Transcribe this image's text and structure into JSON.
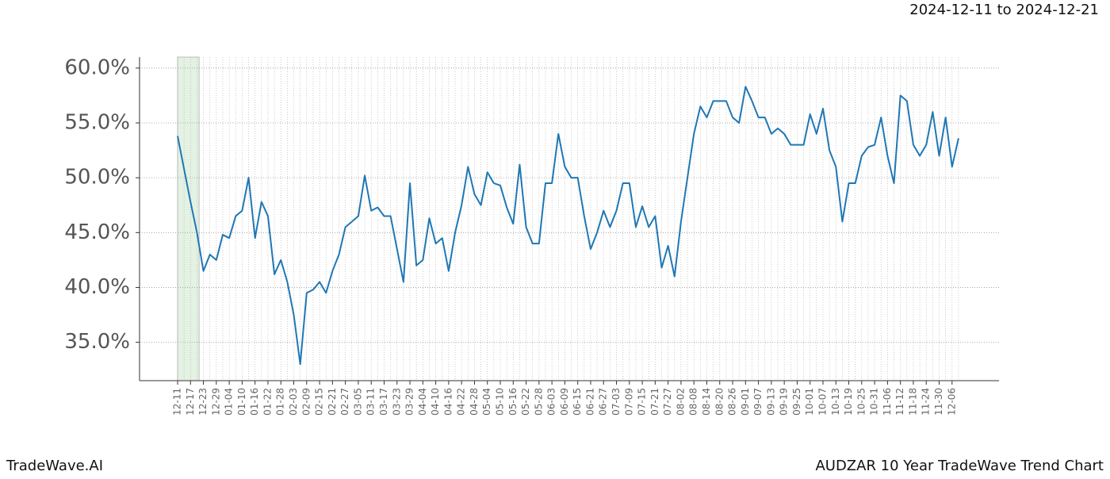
{
  "chart_data": {
    "type": "line",
    "date_range": "2024-12-11 to 2024-12-21",
    "brand": "TradeWave.AI",
    "title": "AUDZAR 10 Year TradeWave Trend Chart",
    "categories": [
      "12-11",
      null,
      "12-17",
      null,
      "12-23",
      null,
      "12-29",
      null,
      "01-04",
      null,
      "01-10",
      null,
      "01-16",
      null,
      "01-22",
      null,
      "01-28",
      null,
      "02-03",
      null,
      "02-09",
      null,
      "02-15",
      null,
      "02-21",
      null,
      "02-27",
      null,
      "03-05",
      null,
      "03-11",
      null,
      "03-17",
      null,
      "03-23",
      null,
      "03-29",
      null,
      "04-04",
      null,
      "04-10",
      null,
      "04-16",
      null,
      "04-22",
      null,
      "04-28",
      null,
      "05-04",
      null,
      "05-10",
      null,
      "05-16",
      null,
      "05-22",
      null,
      "05-28",
      null,
      "06-03",
      null,
      "06-09",
      null,
      "06-15",
      null,
      "06-21",
      null,
      "06-27",
      null,
      "07-03",
      null,
      "07-09",
      null,
      "07-15",
      null,
      "07-21",
      null,
      "07-27",
      null,
      "08-02",
      null,
      "08-08",
      null,
      "08-14",
      null,
      "08-20",
      null,
      "08-26",
      null,
      "09-01",
      null,
      "09-07",
      null,
      "09-13",
      null,
      "09-19",
      null,
      "09-25",
      null,
      "10-01",
      null,
      "10-07",
      null,
      "10-13",
      null,
      "10-19",
      null,
      "10-25",
      null,
      "10-31",
      null,
      "11-06",
      null,
      "11-12",
      null,
      "11-18",
      null,
      "11-24",
      null,
      "11-30",
      null,
      "12-06",
      null
    ],
    "series": [
      {
        "color": "#1f77b4",
        "values": [
          53.8,
          50.8,
          47.8,
          45,
          41.5,
          43,
          42.5,
          44.8,
          44.5,
          46.5,
          47,
          50,
          44.5,
          47.8,
          46.5,
          41.2,
          42.5,
          40.5,
          37.5,
          33,
          39.5,
          39.8,
          40.5,
          39.5,
          41.5,
          43,
          45.5,
          46,
          46.5,
          50.2,
          47,
          47.3,
          46.5,
          46.5,
          43.5,
          40.5,
          49.5,
          42,
          42.5,
          46.3,
          44,
          44.5,
          41.5,
          45,
          47.5,
          51,
          48.5,
          47.5,
          50.5,
          49.5,
          49.3,
          47.3,
          45.8,
          51.2,
          45.5,
          44,
          44,
          49.5,
          49.5,
          54,
          51,
          50,
          50,
          46.5,
          43.5,
          45,
          47,
          45.5,
          47,
          49.5,
          49.5,
          45.5,
          47.4,
          45.5,
          46.5,
          41.8,
          43.8,
          41,
          46,
          50,
          54,
          56.5,
          55.5,
          57,
          57,
          57,
          55.5,
          55,
          58.3,
          57,
          55.5,
          55.5,
          54,
          54.5,
          54,
          53,
          53,
          53,
          55.8,
          54,
          56.3,
          52.5,
          51,
          46,
          49.5,
          49.5,
          52,
          52.8,
          53,
          55.5,
          52,
          49.5,
          57.5,
          57,
          53,
          52,
          53,
          56,
          52,
          55.5,
          51,
          53.6
        ]
      }
    ],
    "highlight": {
      "start": 0,
      "end": 3.33,
      "color": "#e4f2e4"
    },
    "ylim": [
      31.5,
      61
    ],
    "yticks": [
      {
        "value": 35,
        "label": "35.0%"
      },
      {
        "value": 40,
        "label": "40.0%"
      },
      {
        "value": 45,
        "label": "45.0%"
      },
      {
        "value": 50,
        "label": "50.0%"
      },
      {
        "value": 55,
        "label": "55.0%"
      },
      {
        "value": 60,
        "label": "60.0%"
      }
    ],
    "grid": true
  }
}
